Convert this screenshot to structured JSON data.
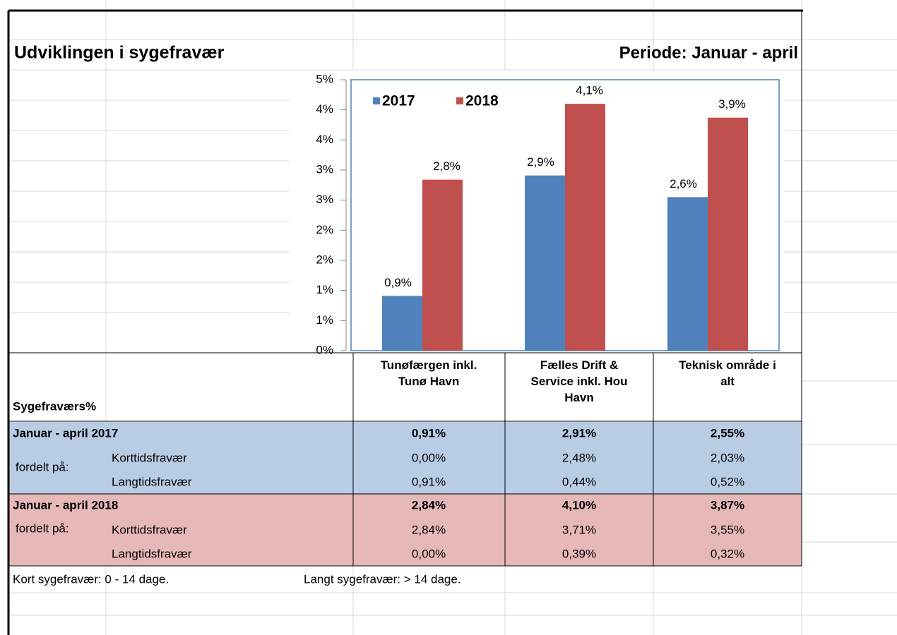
{
  "title": "Udviklingen i sygefravær",
  "period": "Periode: Januar  - april",
  "chart_data": {
    "type": "bar",
    "categories": [
      "Tunøfærgen inkl. Tunø Havn",
      "Fælles Drift & Service inkl. Hou Havn",
      "Teknisk område i alt"
    ],
    "series": [
      {
        "name": "2017",
        "color": "#4f81bd",
        "values": [
          0.91,
          2.91,
          2.55
        ],
        "value_labels": [
          "0,9%",
          "2,9%",
          "2,6%"
        ]
      },
      {
        "name": "2018",
        "color": "#c0504d",
        "values": [
          2.84,
          4.1,
          3.87
        ],
        "value_labels": [
          "2,8%",
          "4,1%",
          "3,9%"
        ]
      }
    ],
    "ylim": [
      0,
      4.5
    ],
    "yticks": [
      {
        "value": 0,
        "label": "0%"
      },
      {
        "value": 0.5,
        "label": "1%"
      },
      {
        "value": 1,
        "label": "1%"
      },
      {
        "value": 1.5,
        "label": "2%"
      },
      {
        "value": 2,
        "label": "2%"
      },
      {
        "value": 2.5,
        "label": "3%"
      },
      {
        "value": 3,
        "label": "3%"
      },
      {
        "value": 3.5,
        "label": "4%"
      },
      {
        "value": 4,
        "label": "4%"
      },
      {
        "value": 4.5,
        "label": "5%"
      }
    ],
    "legend": "top-left"
  },
  "table": {
    "header_label": "Sygefraværs%",
    "groups": [
      {
        "label": "Januar - april 2017",
        "totals": [
          "0,91%",
          "2,91%",
          "2,55%"
        ],
        "split_label": "fordelt på:",
        "color": "#b8cce4",
        "rows": [
          {
            "label": "Korttidsfravær",
            "values": [
              "0,00%",
              "2,48%",
              "2,03%"
            ]
          },
          {
            "label": "Langtidsfravær",
            "values": [
              "0,91%",
              "0,44%",
              "0,52%"
            ]
          }
        ]
      },
      {
        "label": "Januar - april 2018",
        "totals": [
          "2,84%",
          "4,10%",
          "3,87%"
        ],
        "split_label": "fordelt på:",
        "color": "#e6b8b7",
        "rows": [
          {
            "label": "Korttidsfravær",
            "values": [
              "2,84%",
              "3,71%",
              "3,55%"
            ]
          },
          {
            "label": "Langtidsfravær",
            "values": [
              "0,00%",
              "0,39%",
              "0,32%"
            ]
          }
        ]
      }
    ],
    "footer": [
      "Kort sygefravær: 0 - 14 dage.",
      "Langt sygefravær:  > 14 dage."
    ]
  }
}
